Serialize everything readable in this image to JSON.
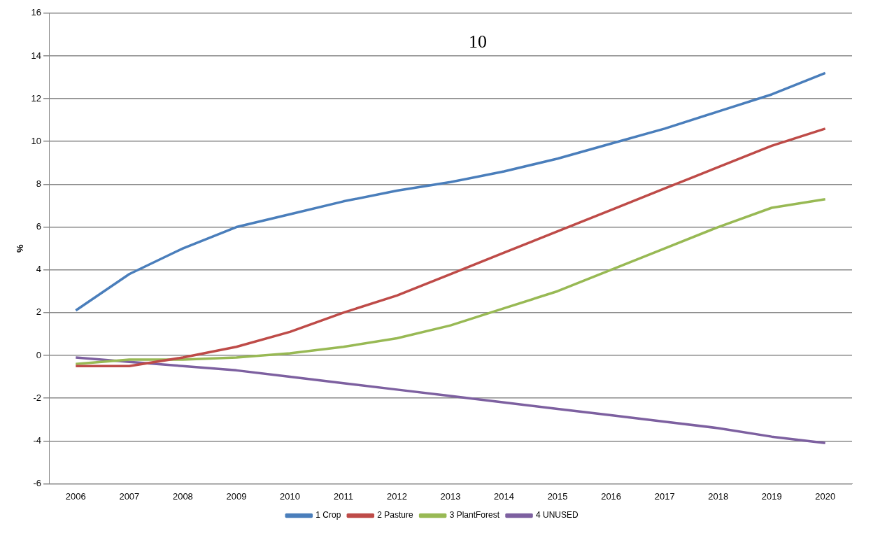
{
  "chart_data": {
    "type": "line",
    "ylabel": "%",
    "annotations": [
      "10"
    ],
    "categories": [
      "2006",
      "2007",
      "2008",
      "2009",
      "2010",
      "2011",
      "2012",
      "2013",
      "2014",
      "2015",
      "2016",
      "2017",
      "2018",
      "2019",
      "2020"
    ],
    "series": [
      {
        "name": "1 Crop",
        "color": "#4a7ebb",
        "values": [
          2.1,
          3.8,
          5.0,
          6.0,
          6.6,
          7.2,
          7.7,
          8.1,
          8.6,
          9.2,
          9.9,
          10.6,
          11.4,
          12.2,
          13.2
        ]
      },
      {
        "name": "2 Pasture",
        "color": "#be4b48",
        "values": [
          -0.5,
          -0.5,
          -0.1,
          0.4,
          1.1,
          2.0,
          2.8,
          3.8,
          4.8,
          5.8,
          6.8,
          7.8,
          8.8,
          9.8,
          10.6
        ]
      },
      {
        "name": "3 PlantForest",
        "color": "#98b954",
        "values": [
          -0.4,
          -0.2,
          -0.2,
          -0.1,
          0.1,
          0.4,
          0.8,
          1.4,
          2.2,
          3.0,
          4.0,
          5.0,
          6.0,
          6.9,
          7.3
        ]
      },
      {
        "name": "4 UNUSED",
        "color": "#7d60a0",
        "values": [
          -0.1,
          -0.3,
          -0.5,
          -0.7,
          -1.0,
          -1.3,
          -1.6,
          -1.9,
          -2.2,
          -2.5,
          -2.8,
          -3.1,
          -3.4,
          -3.8,
          -4.1
        ]
      }
    ],
    "ylim": [
      -6,
      16
    ],
    "yticks": [
      -6,
      -4,
      -2,
      0,
      2,
      4,
      6,
      8,
      10,
      12,
      14,
      16
    ],
    "grid": "y",
    "legend": "bottom",
    "marker": "none",
    "line_style": "solid"
  }
}
